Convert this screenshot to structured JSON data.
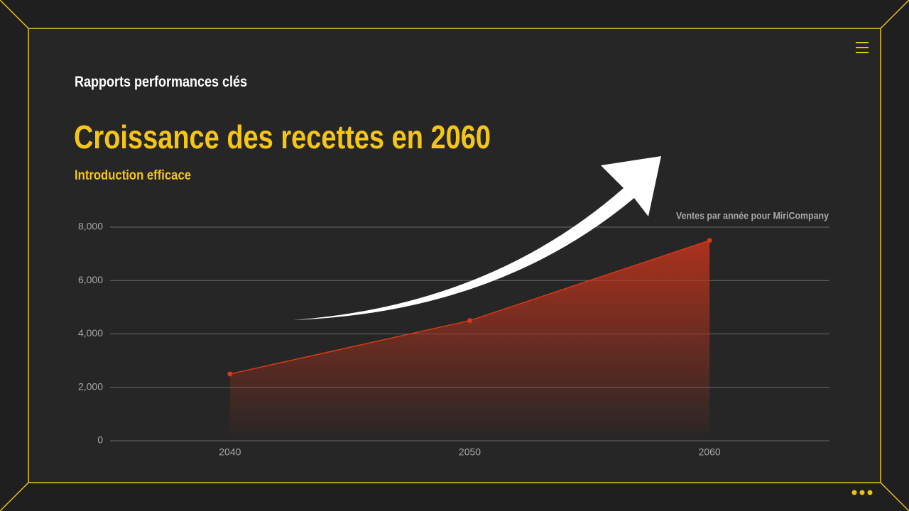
{
  "header": {
    "kicker": "Rapports performances clés",
    "title": "Croissance des recettes en 2060",
    "subtitle": "Introduction efficace"
  },
  "chart_data": {
    "type": "area",
    "title": "Ventes par année pour MiriCompany",
    "categories": [
      "2040",
      "2050",
      "2060"
    ],
    "series": [
      {
        "color": "#d63a1a",
        "values": [
          2500,
          4500,
          7500
        ]
      }
    ],
    "ylim": [
      0,
      8000
    ],
    "yticks": [
      0,
      {
        "value": 2000,
        "label": "2,000"
      },
      {
        "value": 4000,
        "label": "4,000"
      },
      {
        "value": 6000,
        "label": "6,000"
      },
      {
        "value": 8000,
        "label": "8,000"
      }
    ],
    "grid": true
  }
}
